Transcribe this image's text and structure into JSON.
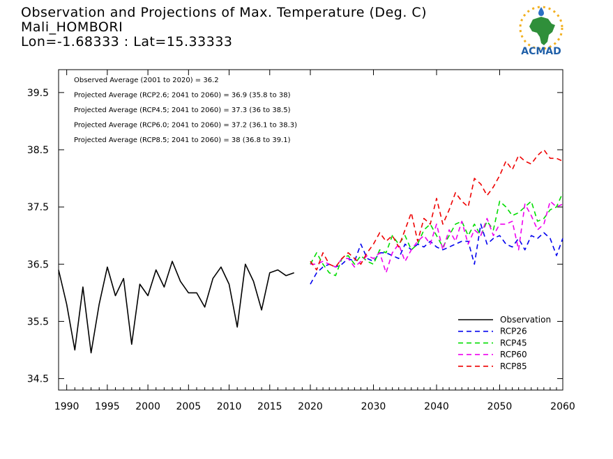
{
  "header": {
    "title": "Observation and Projections of Max. Temperature (Deg. C)",
    "station": "Mali_HOMBORI",
    "coords": "Lon=-1.68333 : Lat=15.33333"
  },
  "logo": {
    "text": "ACMAD",
    "icon": "africa-map-logo-icon",
    "colors": {
      "text": "#1f5fa8",
      "map": "#2f8f3a",
      "sun": "#f2b020",
      "drop": "#2b6fc4"
    }
  },
  "chart_data": {
    "type": "line",
    "x_ticks": [
      "1990",
      "1995",
      "2000",
      "2005",
      "2010",
      "2015",
      "2020",
      "2030",
      "2040",
      "2050",
      "2060"
    ],
    "y_ticks": [
      "34.5",
      "35.5",
      "36.5",
      "37.5",
      "38.5",
      "39.5"
    ],
    "ylim": [
      34.3,
      39.9
    ],
    "xlim_years": [
      1989,
      2060
    ],
    "x_axis_note": "piecewise axis: 1989-2020 compressed scale, 2020-2060 expanded scale",
    "annotations": [
      "Observed Average (2001 to 2020) = 36.2",
      "Projected Average (RCP2.6; 2041 to 2060) = 36.9 (35.8 to 38)",
      "Projected Average (RCP4.5; 2041 to 2060) = 37.3 (36 to 38.5)",
      "Projected Average (RCP6.0; 2041 to 2060) = 37.2 (36.1 to 38.3)",
      "Projected Average (RCP8.5; 2041 to 2060) = 38 (36.8 to 39.1)"
    ],
    "legend_position": "bottom-right",
    "series": [
      {
        "name": "Observation",
        "color": "#000000",
        "dashed": false,
        "start_year": 1989,
        "values": [
          36.4,
          35.8,
          35.0,
          36.1,
          34.95,
          35.8,
          36.45,
          35.95,
          36.25,
          35.1,
          36.15,
          35.95,
          36.4,
          36.1,
          36.55,
          36.2,
          36.0,
          36.0,
          35.75,
          36.25,
          36.45,
          36.15,
          35.4,
          36.5,
          36.2,
          35.7,
          36.35,
          36.4,
          36.3,
          36.35
        ]
      },
      {
        "name": "RCP26",
        "color": "#0000ee",
        "dashed": true,
        "start_year": 2020,
        "values": [
          36.15,
          36.35,
          36.45,
          36.5,
          36.45,
          36.5,
          36.6,
          36.55,
          36.85,
          36.6,
          36.55,
          36.7,
          36.7,
          36.65,
          36.6,
          36.85,
          36.75,
          36.85,
          36.8,
          36.9,
          36.8,
          36.75,
          36.8,
          36.85,
          36.9,
          36.9,
          36.5,
          37.2,
          36.85,
          36.95,
          37.0,
          36.85,
          36.8,
          36.95,
          36.75,
          37.0,
          36.95,
          37.05,
          36.95,
          36.65,
          36.95
        ]
      },
      {
        "name": "RCP45",
        "color": "#00dd00",
        "dashed": true,
        "start_year": 2020,
        "values": [
          36.5,
          36.7,
          36.5,
          36.35,
          36.3,
          36.6,
          36.65,
          36.5,
          36.65,
          36.55,
          36.5,
          36.75,
          36.7,
          37.0,
          36.85,
          37.0,
          36.75,
          36.85,
          37.1,
          37.2,
          37.0,
          36.8,
          37.0,
          37.2,
          37.25,
          37.0,
          37.2,
          37.0,
          37.25,
          37.1,
          37.6,
          37.5,
          37.35,
          37.4,
          37.5,
          37.6,
          37.25,
          37.3,
          37.45,
          37.5,
          37.75
        ]
      },
      {
        "name": "RCP60",
        "color": "#ee00ee",
        "dashed": true,
        "start_year": 2020,
        "values": [
          36.5,
          36.5,
          36.55,
          36.5,
          36.45,
          36.6,
          36.6,
          36.45,
          36.55,
          36.65,
          36.6,
          36.7,
          36.35,
          36.7,
          36.85,
          36.55,
          36.75,
          36.9,
          37.0,
          36.85,
          37.2,
          36.75,
          37.1,
          36.9,
          37.25,
          36.85,
          37.1,
          37.0,
          37.3,
          37.0,
          37.2,
          37.2,
          37.25,
          36.75,
          37.55,
          37.35,
          37.1,
          37.2,
          37.6,
          37.5,
          37.55
        ]
      },
      {
        "name": "RCP85",
        "color": "#ee0000",
        "dashed": true,
        "start_year": 2020,
        "values": [
          36.55,
          36.4,
          36.7,
          36.5,
          36.45,
          36.6,
          36.7,
          36.6,
          36.5,
          36.7,
          36.85,
          37.05,
          36.9,
          37.0,
          36.8,
          37.1,
          37.4,
          36.9,
          37.3,
          37.2,
          37.65,
          37.2,
          37.45,
          37.75,
          37.6,
          37.5,
          38.0,
          37.9,
          37.7,
          37.85,
          38.05,
          38.3,
          38.15,
          38.4,
          38.3,
          38.25,
          38.4,
          38.5,
          38.35,
          38.35,
          38.3
        ]
      }
    ]
  }
}
